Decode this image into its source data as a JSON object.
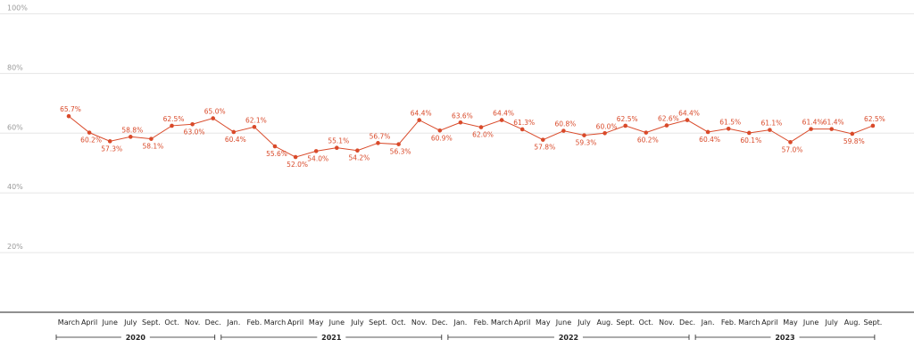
{
  "chart_data": {
    "type": "line",
    "y_tick_labels": [
      "20%",
      "40%",
      "60%",
      "80%",
      "100%"
    ],
    "y_ticks": [
      20,
      40,
      60,
      80,
      100
    ],
    "ylim": [
      0,
      100
    ],
    "categories": [
      "March",
      "April",
      "June",
      "July",
      "Sept.",
      "Oct.",
      "Nov.",
      "Dec.",
      "Jan.",
      "Feb.",
      "March",
      "April",
      "May",
      "June",
      "July",
      "Sept.",
      "Oct.",
      "Nov.",
      "Dec.",
      "Jan.",
      "Feb.",
      "March",
      "April",
      "May",
      "June",
      "July",
      "Aug.",
      "Sept.",
      "Oct.",
      "Nov.",
      "Dec.",
      "Jan.",
      "Feb.",
      "March",
      "April",
      "May",
      "June",
      "July",
      "Aug.",
      "Sept."
    ],
    "series": [
      {
        "values": [
          65.7,
          60.2,
          57.3,
          58.8,
          58.1,
          62.5,
          63.0,
          65.0,
          60.4,
          62.1,
          55.6,
          52.0,
          54.0,
          55.1,
          54.2,
          56.7,
          56.3,
          64.4,
          60.9,
          63.6,
          62.0,
          64.4,
          61.3,
          57.8,
          60.8,
          59.3,
          60.0,
          62.5,
          60.2,
          62.6,
          64.4,
          60.4,
          61.5,
          60.1,
          61.1,
          57.0,
          61.4,
          61.4,
          59.8,
          62.5
        ],
        "labels": [
          "65.7%",
          "60.2%",
          "57.3%",
          "58.8%",
          "58.1%",
          "62.5%",
          "63.0%",
          "65.0%",
          "60.4%",
          "62.1%",
          "55.6%",
          "52.0%",
          "54.0%",
          "55.1%",
          "54.2%",
          "56.7%",
          "56.3%",
          "64.4%",
          "60.9%",
          "63.6%",
          "62.0%",
          "64.4%",
          "61.3%",
          "57.8%",
          "60.8%",
          "59.3%",
          "60.0%",
          "62.5%",
          "60.2%",
          "62.6%",
          "64.4%",
          "60.4%",
          "61.5%",
          "60.1%",
          "61.1%",
          "57.0%",
          "61.4%",
          "61.4%",
          "59.8%",
          "62.5%"
        ],
        "label_position": [
          "above",
          "below",
          "below",
          "above",
          "below",
          "above",
          "below",
          "above",
          "below",
          "above",
          "below",
          "below",
          "below",
          "above",
          "below",
          "above",
          "below",
          "above",
          "below",
          "above",
          "below",
          "above",
          "above",
          "below",
          "above",
          "below",
          "above",
          "above",
          "below",
          "above",
          "above",
          "below",
          "above",
          "below",
          "above",
          "below",
          "above",
          "above",
          "below",
          "above"
        ]
      }
    ],
    "year_groups": [
      {
        "label": "2020",
        "start": 0,
        "end": 7
      },
      {
        "label": "2021",
        "start": 8,
        "end": 18
      },
      {
        "label": "2022",
        "start": 19,
        "end": 30
      },
      {
        "label": "2023",
        "start": 31,
        "end": 39
      }
    ],
    "line_color": "#d94a2a",
    "grid": true,
    "legend": "none"
  }
}
